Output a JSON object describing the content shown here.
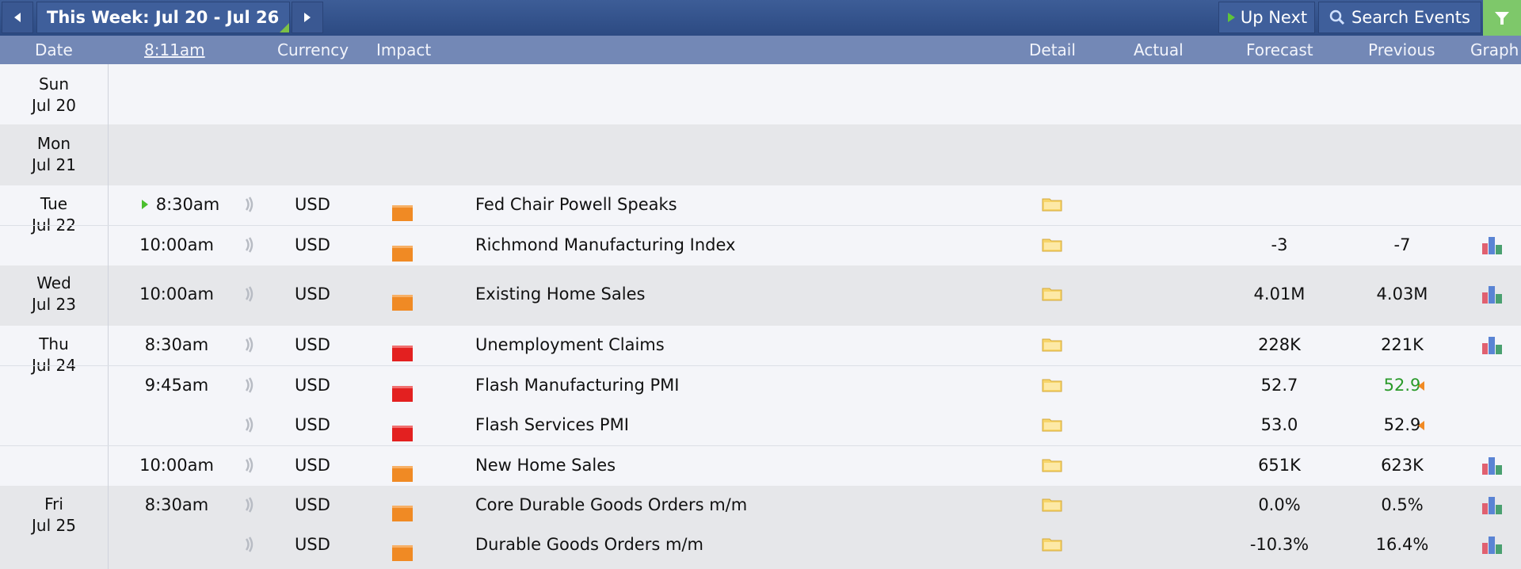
{
  "toolbar": {
    "week_label": "This Week: Jul 20 - Jul 26",
    "up_next": "Up Next",
    "search": "Search Events"
  },
  "columns": {
    "date": "Date",
    "time": "8:11am",
    "currency": "Currency",
    "impact": "Impact",
    "detail": "Detail",
    "actual": "Actual",
    "forecast": "Forecast",
    "previous": "Previous",
    "graph": "Graph"
  },
  "colors": {
    "impact_medium": "#f08a24",
    "impact_high": "#e32020",
    "previous_better": "#2a9a2a"
  },
  "days": [
    {
      "weekday": "Sun",
      "date": "Jul 20",
      "events": []
    },
    {
      "weekday": "Mon",
      "date": "Jul 21",
      "events": []
    },
    {
      "weekday": "Tue",
      "date": "Jul 22",
      "events": [
        {
          "time": "8:30am",
          "currency": "USD",
          "impact": "medium",
          "event": "Fed Chair Powell Speaks",
          "actual": "",
          "forecast": "",
          "previous": "",
          "graph": false
        },
        {
          "time": "10:00am",
          "currency": "USD",
          "impact": "medium",
          "event": "Richmond Manufacturing Index",
          "actual": "",
          "forecast": "-3",
          "previous": "-7",
          "graph": true
        }
      ]
    },
    {
      "weekday": "Wed",
      "date": "Jul 23",
      "events": [
        {
          "time": "10:00am",
          "currency": "USD",
          "impact": "medium",
          "event": "Existing Home Sales",
          "actual": "",
          "forecast": "4.01M",
          "previous": "4.03M",
          "graph": true
        }
      ]
    },
    {
      "weekday": "Thu",
      "date": "Jul 24",
      "events": [
        {
          "time": "8:30am",
          "currency": "USD",
          "impact": "high",
          "event": "Unemployment Claims",
          "actual": "",
          "forecast": "228K",
          "previous": "221K",
          "graph": true
        },
        {
          "time": "9:45am",
          "currency": "USD",
          "impact": "high",
          "event": "Flash Manufacturing PMI",
          "actual": "",
          "forecast": "52.7",
          "previous": "52.9",
          "graph": false
        },
        {
          "time": "",
          "currency": "USD",
          "impact": "high",
          "event": "Flash Services PMI",
          "actual": "",
          "forecast": "53.0",
          "previous": "52.9",
          "graph": false
        },
        {
          "time": "10:00am",
          "currency": "USD",
          "impact": "medium",
          "event": "New Home Sales",
          "actual": "",
          "forecast": "651K",
          "previous": "623K",
          "graph": true
        }
      ]
    },
    {
      "weekday": "Fri",
      "date": "Jul 25",
      "events": [
        {
          "time": "8:30am",
          "currency": "USD",
          "impact": "medium",
          "event": "Core Durable Goods Orders m/m",
          "actual": "",
          "forecast": "0.0%",
          "previous": "0.5%",
          "graph": true
        },
        {
          "time": "",
          "currency": "USD",
          "impact": "medium",
          "event": "Durable Goods Orders m/m",
          "actual": "",
          "forecast": "-10.3%",
          "previous": "16.4%",
          "graph": true
        }
      ]
    }
  ]
}
